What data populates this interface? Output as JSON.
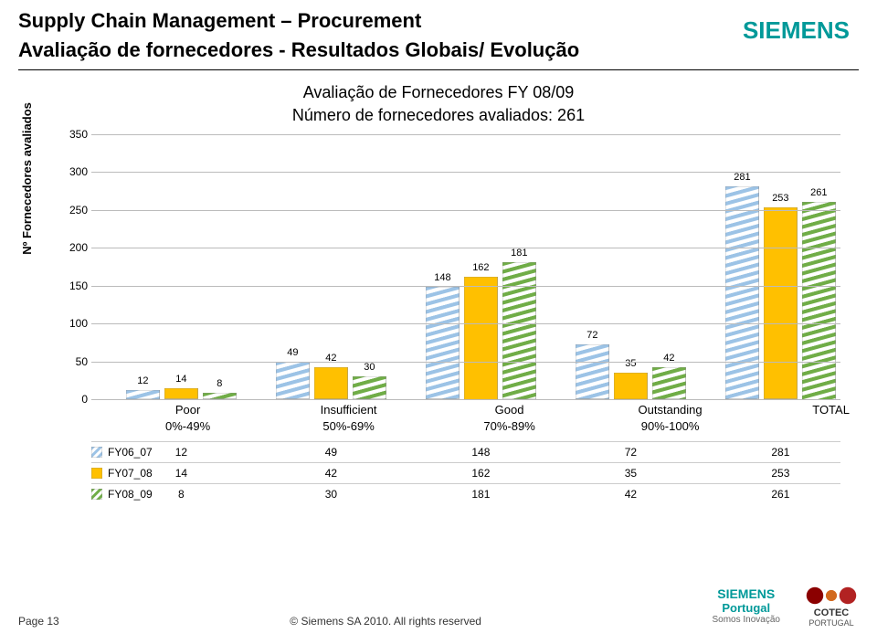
{
  "header": {
    "title": "Supply Chain Management – Procurement",
    "subtitle": "Avaliação de fornecedores - Resultados Globais/ Evolução",
    "logo_text": "SIEMENS",
    "logo_color": "#009999"
  },
  "chart": {
    "title": "Avaliação de Fornecedores FY 08/09",
    "subtitle": "Número de fornecedores avaliados: 261",
    "yaxis_label": "Nº Fornecedores avaliados",
    "ylim": [
      0,
      350
    ],
    "ytick_step": 50,
    "yticks": [
      0,
      50,
      100,
      150,
      200,
      250,
      300,
      350
    ],
    "grid_color": "#bbbbbb",
    "categories": [
      "Poor",
      "Insufficient",
      "Good",
      "Outstanding",
      "TOTAL"
    ],
    "ranges": [
      "0%-49%",
      "50%-69%",
      "70%-89%",
      "90%-100%",
      ""
    ],
    "series": [
      {
        "name": "FY06_07",
        "color": "#9cc3e6",
        "pattern": "diag",
        "values": [
          12,
          49,
          148,
          72,
          281
        ]
      },
      {
        "name": "FY07_08",
        "color": "#ffc000",
        "pattern": "solid",
        "values": [
          14,
          42,
          162,
          35,
          253
        ]
      },
      {
        "name": "FY08_09",
        "color": "#70ad47",
        "pattern": "diag",
        "values": [
          8,
          30,
          181,
          42,
          261
        ]
      }
    ],
    "group_positions": [
      4,
      24,
      44,
      64,
      84
    ],
    "bar_label_fontsize": 11,
    "cat_label_fontsize": 13
  },
  "footer": {
    "page": "Page 13",
    "copyright": "© Siemens SA 2010. All rights reserved",
    "portugal": "Portugal",
    "tagline": "Somos Inovação",
    "cotec": "COTEC",
    "cotec_sub": "PORTUGAL"
  }
}
